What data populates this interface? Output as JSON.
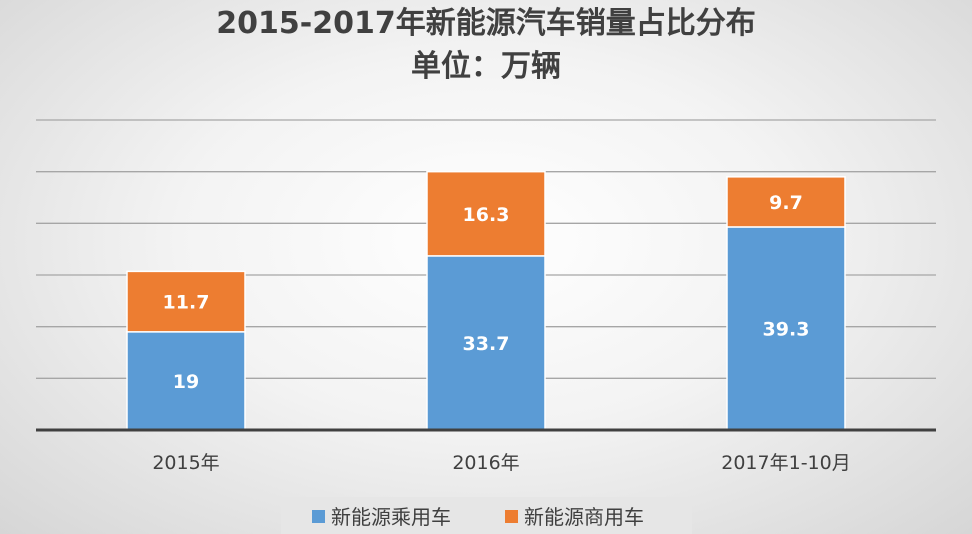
{
  "chart_data": {
    "type": "bar",
    "stacked": true,
    "title": "2015-2017年新能源汽车销量占比分布",
    "subtitle": "单位：万辆",
    "categories": [
      "2015年",
      "2016年",
      "2017年1-10月"
    ],
    "series": [
      {
        "name": "新能源乘用车",
        "values": [
          19,
          33.7,
          39.3
        ],
        "color": "#5b9bd5",
        "labels": [
          "19",
          "33.7",
          "39.3"
        ]
      },
      {
        "name": "新能源商用车",
        "values": [
          11.7,
          16.3,
          9.7
        ],
        "color": "#ed7d31",
        "labels": [
          "11.7",
          "16.3",
          "9.7"
        ]
      }
    ],
    "ylim": [
      0,
      60
    ],
    "grid": true,
    "legend": "bottom"
  }
}
